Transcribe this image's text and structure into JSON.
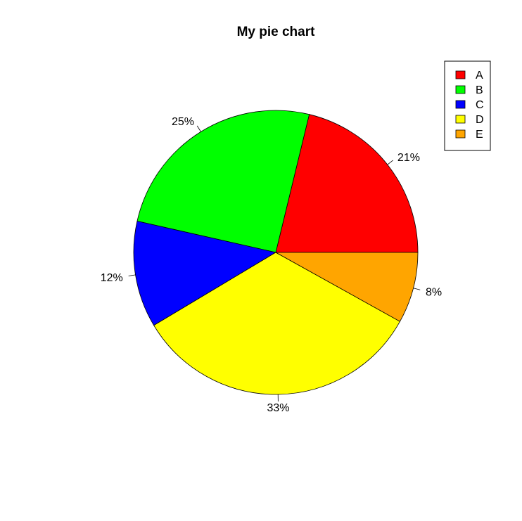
{
  "chart_data": {
    "type": "pie",
    "title": "My pie chart",
    "categories": [
      "A",
      "B",
      "C",
      "D",
      "E"
    ],
    "values": [
      21,
      25,
      12,
      33,
      8
    ],
    "labels": [
      "21%",
      "25%",
      "12%",
      "33%",
      "8%"
    ],
    "colors": [
      "#FF0000",
      "#00FF00",
      "#0000FF",
      "#FFFF00",
      "#FFA500"
    ],
    "start_angle_deg": 0,
    "direction": "counterclockwise",
    "legend": {
      "position": "top-right",
      "entries": [
        "A",
        "B",
        "C",
        "D",
        "E"
      ]
    }
  }
}
